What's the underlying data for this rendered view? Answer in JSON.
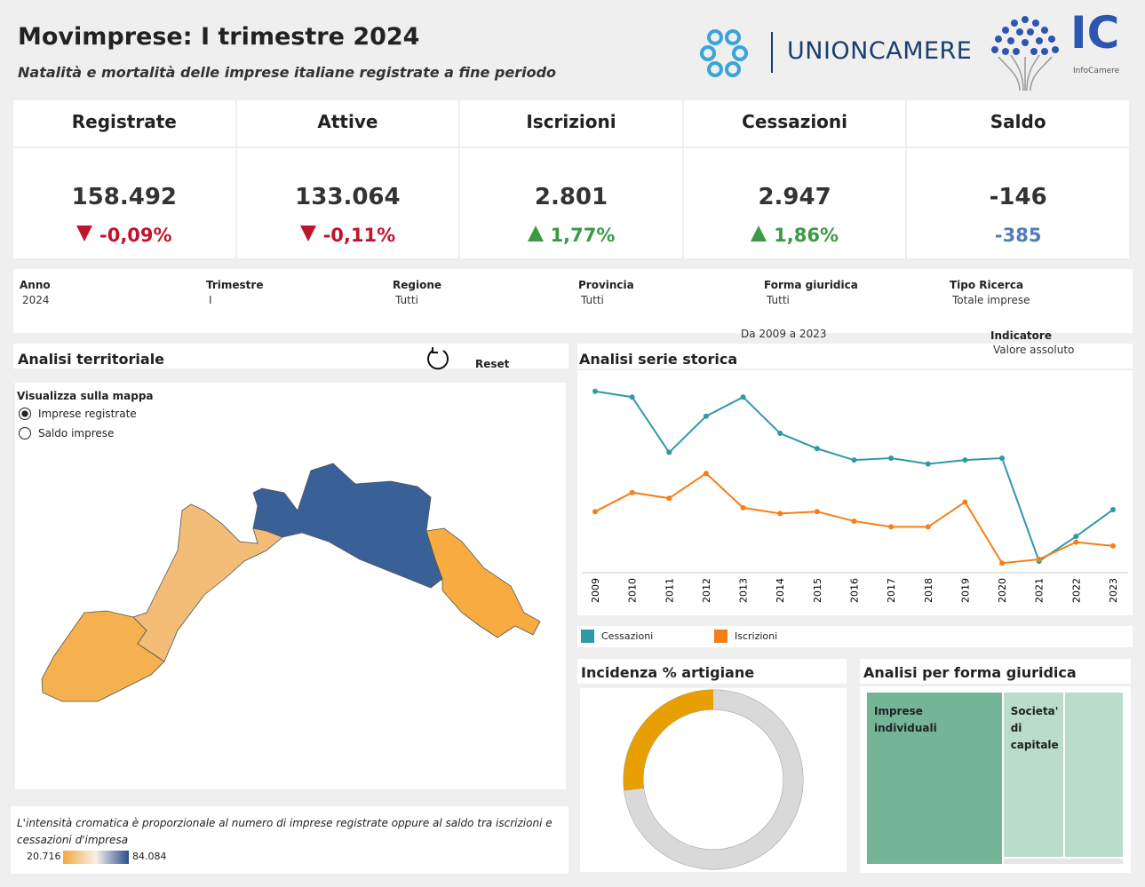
{
  "header": {
    "title": "Movimprese: I trimestre 2024",
    "subtitle": "Natalità e mortalità delle imprese italiane registrate a fine periodo",
    "logo1": "UNIONCAMERE",
    "logo2": "IC",
    "logo2_sub": "InfoCamere"
  },
  "kpis": [
    {
      "label": "Registrate",
      "value": "158.492",
      "delta": "-0,09%",
      "trend": "down"
    },
    {
      "label": "Attive",
      "value": "133.064",
      "delta": "-0,11%",
      "trend": "down"
    },
    {
      "label": "Iscrizioni",
      "value": "2.801",
      "delta": "1,77%",
      "trend": "up"
    },
    {
      "label": "Cessazioni",
      "value": "2.947",
      "delta": "1,86%",
      "trend": "up"
    },
    {
      "label": "Saldo",
      "value": "-146",
      "delta": "-385",
      "trend": "none"
    }
  ],
  "filters": [
    {
      "label": "Anno",
      "value": "2024"
    },
    {
      "label": "Trimestre",
      "value": "I"
    },
    {
      "label": "Regione",
      "value": "Tutti"
    },
    {
      "label": "Provincia",
      "value": "Tutti"
    },
    {
      "label": "Forma giuridica",
      "value": "Tutti"
    },
    {
      "label": "Tipo Ricerca",
      "value": "Totale imprese"
    }
  ],
  "map_panel": {
    "title": "Analisi territoriale",
    "reset": "Reset",
    "options_title": "Visualizza sulla mappa",
    "options": [
      "Imprese registrate",
      "Saldo imprese"
    ],
    "selected": 0,
    "note": "L'intensità cromatica è proporzionale al numero di imprese registrate oppure al saldo tra iscrizioni e cessazioni d'impresa",
    "legend_min": "20.716",
    "legend_max": "84.084"
  },
  "series_panel": {
    "range": "Da 2009 a 2023",
    "indicator_label": "Indicatore",
    "indicator_value": "Valore assoluto"
  },
  "chart_data": [
    {
      "type": "line",
      "title": "Analisi serie storica",
      "categories": [
        "2009",
        "2010",
        "2011",
        "2012",
        "2013",
        "2014",
        "2015",
        "2016",
        "2017",
        "2018",
        "2019",
        "2020",
        "2021",
        "2022",
        "2023"
      ],
      "ylim": [
        0,
        100
      ],
      "series": [
        {
          "name": "Cessazioni",
          "color": "#2e9aa8",
          "values": [
            95,
            92,
            63,
            82,
            92,
            73,
            65,
            59,
            60,
            57,
            59,
            60,
            6,
            19,
            33
          ]
        },
        {
          "name": "Iscrizioni",
          "color": "#f57f17",
          "values": [
            32,
            42,
            39,
            52,
            34,
            31,
            32,
            27,
            24,
            24,
            37,
            5,
            7,
            16,
            14
          ]
        }
      ]
    },
    {
      "type": "pie",
      "title": "Incidenza % artigiane",
      "values": [
        27,
        73
      ],
      "colors": [
        "#e8a000",
        "#d9d9d9"
      ]
    },
    {
      "type": "treemap",
      "title": "Analisi per forma giuridica",
      "categories": [
        "Imprese individuali",
        "Societa' di capitale",
        null,
        null
      ],
      "values": [
        53,
        23,
        22,
        2
      ],
      "colors": [
        "#74b598",
        "#b9dccb",
        "#b9dccb",
        "#e6e6e6"
      ]
    }
  ]
}
